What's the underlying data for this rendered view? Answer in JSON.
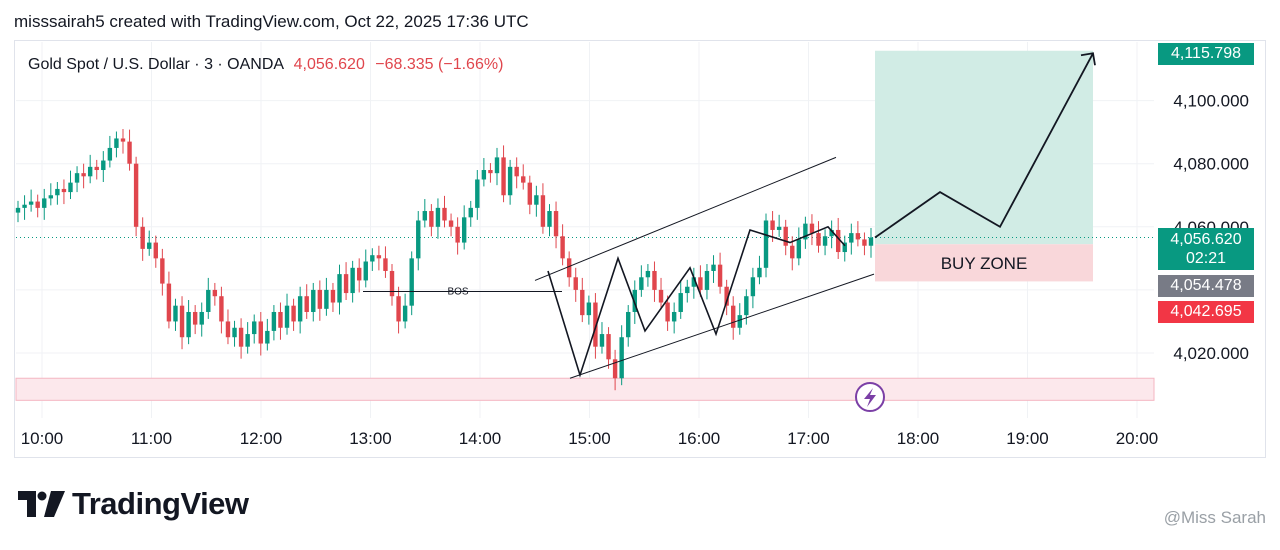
{
  "header": {
    "text": "misssairah5 created with TradingView.com, Oct 22, 2025 17:36 UTC"
  },
  "symbol": {
    "name": "Gold Spot / U.S. Dollar · 3 · OANDA",
    "price": "4,056.620",
    "change": "−68.335 (−1.66%)"
  },
  "price_labels": {
    "target": "4,115.798",
    "current": "4,056.620",
    "countdown": "02:21",
    "mid": "4,054.478",
    "stop": "4,042.695"
  },
  "annotations": {
    "bos": "BOS",
    "buy_zone": "BUY ZONE"
  },
  "logo": {
    "text": "TradingView"
  },
  "watermark": {
    "text": "@Miss Sarah"
  },
  "colors": {
    "up": "#089981",
    "down": "#e0464d",
    "target_zone": "#d1ece5",
    "buy_zone": "#f9d7da",
    "support_zone": "#fce8ec",
    "label_green": "#089981",
    "label_gray": "#787b86",
    "label_red": "#f23645",
    "icon_purple": "#7b3fa6"
  },
  "chart_data": {
    "type": "candlestick",
    "yticks": [
      4020,
      4040,
      4060,
      4080,
      4100
    ],
    "ytick_labels": [
      "4,020.000",
      "4,060.000",
      "4,080.000",
      "4,100.000"
    ],
    "ylim": [
      4005,
      4123
    ],
    "xticks": [
      "10:00",
      "11:00",
      "12:00",
      "13:00",
      "14:00",
      "15:00",
      "16:00",
      "17:00",
      "18:00",
      "19:00",
      "20:00"
    ],
    "current_price": 4056.62,
    "close": [
      4066,
      4067,
      4068,
      4066,
      4069,
      4070,
      4072,
      4071,
      4074,
      4077,
      4076,
      4079,
      4078,
      4081,
      4085,
      4088,
      4087,
      4080,
      4060,
      4053,
      4055,
      4050,
      4042,
      4030,
      4035,
      4025,
      4033,
      4029,
      4033,
      4040,
      4038,
      4030,
      4025,
      4028,
      4022,
      4026,
      4030,
      4023,
      4027,
      4033,
      4028,
      4035,
      4030,
      4038,
      4033,
      4040,
      4034,
      4040,
      4036,
      4045,
      4039,
      4047,
      4043,
      4049,
      4051,
      4050,
      4046,
      4038,
      4030,
      4035,
      4050,
      4062,
      4065,
      4060,
      4066,
      4062,
      4060,
      4055,
      4063,
      4066,
      4075,
      4078,
      4077,
      4082,
      4070,
      4079,
      4076,
      4074,
      4067,
      4070,
      4060,
      4065,
      4057,
      4050,
      4044,
      4040,
      4032,
      4036,
      4022,
      4026,
      4018,
      4012,
      4025,
      4033,
      4040,
      4044,
      4046,
      4040,
      4036,
      4030,
      4033,
      4039,
      4041,
      4044,
      4040,
      4046,
      4048,
      4041,
      4035,
      4028,
      4032,
      4038,
      4044,
      4047,
      4062,
      4059,
      4060,
      4054,
      4050,
      4056,
      4061,
      4058,
      4054,
      4057,
      4059,
      4052,
      4055,
      4058,
      4056,
      4054,
      4056.6
    ],
    "support_zone": [
      4005,
      4012
    ],
    "rising_channel": {
      "upper": [
        [
          4043,
          4082
        ]
      ],
      "lower": [
        [
          4012,
          4045
        ]
      ]
    },
    "bos_level": 4039.5,
    "long_position": {
      "entry": 4054.478,
      "target": 4115.798,
      "stop": 4042.695
    },
    "projection": [
      4056.6,
      4071,
      4060,
      4115
    ]
  }
}
